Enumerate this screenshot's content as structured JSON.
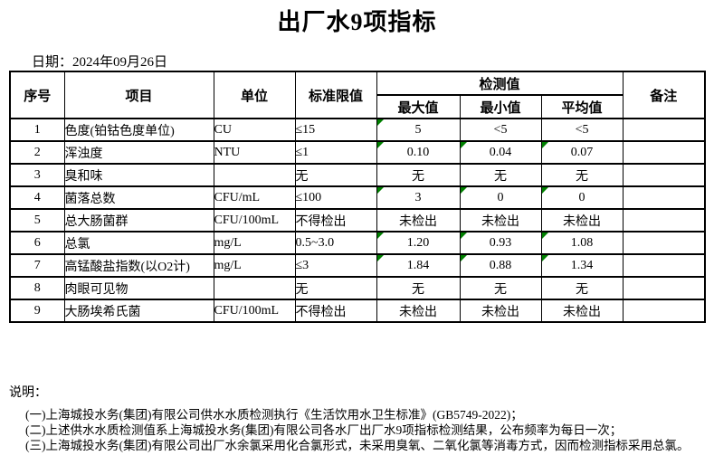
{
  "page": {
    "title": "出厂水9项指标",
    "date_label": "日期：2024年09月26日"
  },
  "table": {
    "headers": {
      "no": "序号",
      "item": "项目",
      "unit": "单位",
      "limit": "标准限值",
      "detection": "检测值",
      "max": "最大值",
      "min": "最小值",
      "avg": "平均值",
      "remark": "备注"
    },
    "rows": [
      {
        "no": "1",
        "item": "色度(铂钴色度单位)",
        "unit": "CU",
        "limit": "≤15",
        "max": "5",
        "min": "<5",
        "avg": "<5",
        "remark": "",
        "flags": [
          true,
          false,
          false
        ]
      },
      {
        "no": "2",
        "item": "浑浊度",
        "unit": "NTU",
        "limit": "≤1",
        "max": "0.10",
        "min": "0.04",
        "avg": "0.07",
        "remark": "",
        "flags": [
          true,
          true,
          true
        ]
      },
      {
        "no": "3",
        "item": "臭和味",
        "unit": "",
        "limit": "无",
        "max": "无",
        "min": "无",
        "avg": "无",
        "remark": "",
        "flags": [
          false,
          false,
          false
        ]
      },
      {
        "no": "4",
        "item": "菌落总数",
        "unit": "CFU/mL",
        "limit": "≤100",
        "max": "3",
        "min": "0",
        "avg": "0",
        "remark": "",
        "flags": [
          true,
          true,
          true
        ]
      },
      {
        "no": "5",
        "item": "总大肠菌群",
        "unit": "CFU/100mL",
        "limit": "不得检出",
        "max": "未检出",
        "min": "未检出",
        "avg": "未检出",
        "remark": "",
        "flags": [
          false,
          false,
          false
        ]
      },
      {
        "no": "6",
        "item": "总氯",
        "unit": "mg/L",
        "limit": "0.5~3.0",
        "max": "1.20",
        "min": "0.93",
        "avg": "1.08",
        "remark": "",
        "flags": [
          true,
          true,
          true
        ]
      },
      {
        "no": "7",
        "item": "高锰酸盐指数(以O2计)",
        "unit": "mg/L",
        "limit": "≤3",
        "max": "1.84",
        "min": "0.88",
        "avg": "1.34",
        "remark": "",
        "flags": [
          true,
          true,
          true
        ]
      },
      {
        "no": "8",
        "item": "肉眼可见物",
        "unit": "",
        "limit": "无",
        "max": "无",
        "min": "无",
        "avg": "无",
        "remark": "",
        "flags": [
          false,
          false,
          false
        ]
      },
      {
        "no": "9",
        "item": "大肠埃希氏菌",
        "unit": "CFU/100mL",
        "limit": "不得检出",
        "max": "未检出",
        "min": "未检出",
        "avg": "未检出",
        "remark": "",
        "flags": [
          false,
          false,
          false
        ]
      }
    ]
  },
  "notes": {
    "label": "说明：",
    "items": [
      "(一)上海城投水务(集团)有限公司供水水质检测执行《生活饮用水卫生标准》(GB5749-2022)；",
      "(二)上述供水水质检测值系上海城投水务(集团)有限公司各水厂出厂水9项指标检测结果，公布频率为每日一次；",
      "(三)上海城投水务(集团)有限公司出厂水余氯采用化合氯形式，未采用臭氧、二氧化氯等消毒方式，因而检测指标采用总氯。"
    ]
  },
  "colors": {
    "text": "#000000",
    "grid": "#000000",
    "background": "#ffffff",
    "flag_green": "#008000"
  },
  "icons": {
    "flag": "green-corner-flag-icon"
  }
}
